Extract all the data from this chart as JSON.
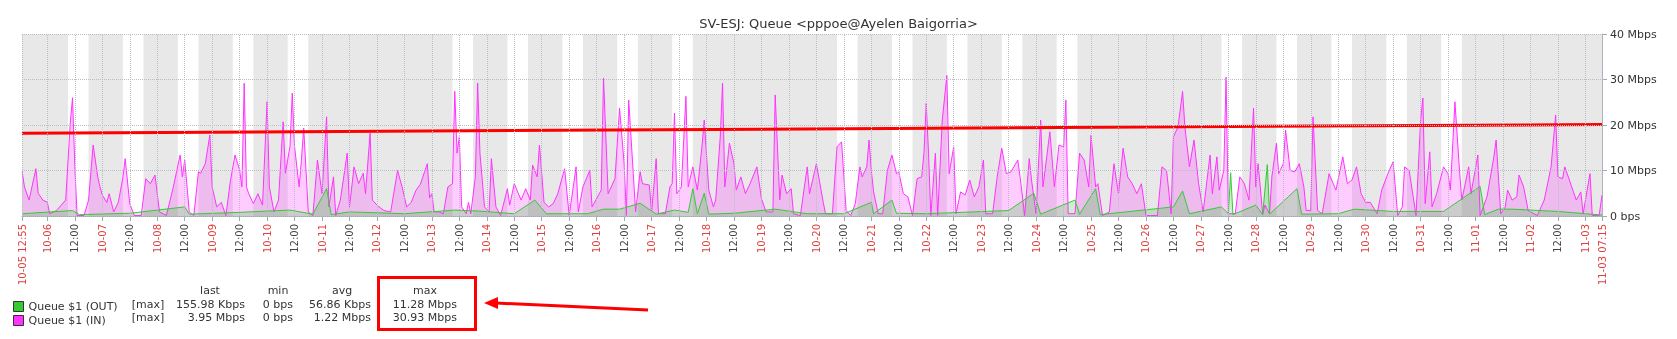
{
  "chart_data": {
    "type": "area",
    "title": "SV-ESJ: Queue <pppoe@Ayelen Baigorria>",
    "xlim": [
      "--10-05T12:55",
      "--11-03T07:15"
    ],
    "xticks": [
      {
        "value": "--10-05T12:55",
        "label": "10-05 12:55"
      },
      {
        "value": "--10-06T00:00",
        "label": "10-06"
      },
      {
        "value": "--10-06T12:00",
        "label": "12:00"
      },
      {
        "value": "--10-07T00:00",
        "label": "10-07"
      },
      {
        "value": "--10-07T12:00",
        "label": "12:00"
      },
      {
        "value": "--10-08T00:00",
        "label": "10-08"
      },
      {
        "value": "--10-08T12:00",
        "label": "12:00"
      },
      {
        "value": "--10-09T00:00",
        "label": "10-09"
      },
      {
        "value": "--10-09T12:00",
        "label": "12:00"
      },
      {
        "value": "--10-10T00:00",
        "label": "10-10"
      },
      {
        "value": "--10-10T12:00",
        "label": "12:00"
      },
      {
        "value": "--10-11T00:00",
        "label": "10-11"
      },
      {
        "value": "--10-11T12:00",
        "label": "12:00"
      },
      {
        "value": "--10-12T00:00",
        "label": "10-12"
      },
      {
        "value": "--10-12T12:00",
        "label": "12:00"
      },
      {
        "value": "--10-13T00:00",
        "label": "10-13"
      },
      {
        "value": "--10-13T12:00",
        "label": "12:00"
      },
      {
        "value": "--10-14T00:00",
        "label": "10-14"
      },
      {
        "value": "--10-14T12:00",
        "label": "12:00"
      },
      {
        "value": "--10-15T00:00",
        "label": "10-15"
      },
      {
        "value": "--10-15T12:00",
        "label": "12:00"
      },
      {
        "value": "--10-16T00:00",
        "label": "10-16"
      },
      {
        "value": "--10-16T12:00",
        "label": "12:00"
      },
      {
        "value": "--10-17T00:00",
        "label": "10-17"
      },
      {
        "value": "--10-17T12:00",
        "label": "12:00"
      },
      {
        "value": "--10-18T00:00",
        "label": "10-18"
      },
      {
        "value": "--10-18T12:00",
        "label": "12:00"
      },
      {
        "value": "--10-19T00:00",
        "label": "10-19"
      },
      {
        "value": "--10-19T12:00",
        "label": "12:00"
      },
      {
        "value": "--10-20T00:00",
        "label": "10-20"
      },
      {
        "value": "--10-20T12:00",
        "label": "12:00"
      },
      {
        "value": "--10-21T00:00",
        "label": "10-21"
      },
      {
        "value": "--10-21T12:00",
        "label": "12:00"
      },
      {
        "value": "--10-22T00:00",
        "label": "10-22"
      },
      {
        "value": "--10-22T12:00",
        "label": "12:00"
      },
      {
        "value": "--10-23T00:00",
        "label": "10-23"
      },
      {
        "value": "--10-23T12:00",
        "label": "12:00"
      },
      {
        "value": "--10-24T00:00",
        "label": "10-24"
      },
      {
        "value": "--10-24T12:00",
        "label": "12:00"
      },
      {
        "value": "--10-25T00:00",
        "label": "10-25"
      },
      {
        "value": "--10-25T12:00",
        "label": "12:00"
      },
      {
        "value": "--10-26T00:00",
        "label": "10-26"
      },
      {
        "value": "--10-26T12:00",
        "label": "12:00"
      },
      {
        "value": "--10-27T00:00",
        "label": "10-27"
      },
      {
        "value": "--10-27T12:00",
        "label": "12:00"
      },
      {
        "value": "--10-28T00:00",
        "label": "10-28"
      },
      {
        "value": "--10-28T12:00",
        "label": "12:00"
      },
      {
        "value": "--10-29T00:00",
        "label": "10-29"
      },
      {
        "value": "--10-29T12:00",
        "label": "12:00"
      },
      {
        "value": "--10-30T00:00",
        "label": "10-30"
      },
      {
        "value": "--10-30T12:00",
        "label": "12:00"
      },
      {
        "value": "--10-31T00:00",
        "label": "10-31"
      },
      {
        "value": "--10-31T12:00",
        "label": "12:00"
      },
      {
        "value": "--11-01T00:00",
        "label": "11-01"
      },
      {
        "value": "--11-01T12:00",
        "label": "12:00"
      },
      {
        "value": "--11-02T00:00",
        "label": "11-02"
      },
      {
        "value": "--11-02T12:00",
        "label": "12:00"
      },
      {
        "value": "--11-03T00:00",
        "label": "11-03"
      },
      {
        "value": "--11-03T07:15",
        "label": "11-03 07:15"
      }
    ],
    "ylim": [
      0,
      40
    ],
    "yticks": [
      {
        "value": 0,
        "label": "0 bps"
      },
      {
        "value": 10,
        "label": "10 Mbps"
      },
      {
        "value": 20,
        "label": "20 Mbps"
      },
      {
        "value": 30,
        "label": "30 Mbps"
      },
      {
        "value": 40,
        "label": "40 Mbps"
      }
    ],
    "grid": true,
    "legend": "bottom left",
    "bands": [
      {
        "axis": "x",
        "from": "--10-05T12:55",
        "to": "--10-06T09:00",
        "color": "#e8e8e8"
      },
      {
        "axis": "x",
        "from": "--10-06T18:00",
        "to": "--10-07T09:00",
        "color": "#e8e8e8"
      },
      {
        "axis": "x",
        "from": "--10-07T18:00",
        "to": "--10-08T09:00",
        "color": "#e8e8e8"
      },
      {
        "axis": "x",
        "from": "--10-08T18:00",
        "to": "--10-09T09:00",
        "color": "#e8e8e8"
      },
      {
        "axis": "x",
        "from": "--10-09T18:00",
        "to": "--10-10T09:00",
        "color": "#e8e8e8"
      },
      {
        "axis": "x",
        "from": "--10-10T18:00",
        "to": "--10-13T09:00",
        "color": "#e8e8e8"
      },
      {
        "axis": "x",
        "from": "--10-13T18:00",
        "to": "--10-14T09:00",
        "color": "#e8e8e8"
      },
      {
        "axis": "x",
        "from": "--10-14T18:00",
        "to": "--10-15T09:00",
        "color": "#e8e8e8"
      },
      {
        "axis": "x",
        "from": "--10-15T18:00",
        "to": "--10-16T09:00",
        "color": "#e8e8e8"
      },
      {
        "axis": "x",
        "from": "--10-16T18:00",
        "to": "--10-17T09:00",
        "color": "#e8e8e8"
      },
      {
        "axis": "x",
        "from": "--10-17T18:00",
        "to": "--10-20T09:00",
        "color": "#e8e8e8"
      },
      {
        "axis": "x",
        "from": "--10-20T18:00",
        "to": "--10-21T09:00",
        "color": "#e8e8e8"
      },
      {
        "axis": "x",
        "from": "--10-21T18:00",
        "to": "--10-22T09:00",
        "color": "#e8e8e8"
      },
      {
        "axis": "x",
        "from": "--10-22T18:00",
        "to": "--10-23T09:00",
        "color": "#e8e8e8"
      },
      {
        "axis": "x",
        "from": "--10-23T18:00",
        "to": "--10-24T09:00",
        "color": "#e8e8e8"
      },
      {
        "axis": "x",
        "from": "--10-24T18:00",
        "to": "--10-27T09:00",
        "color": "#e8e8e8"
      },
      {
        "axis": "x",
        "from": "--10-27T18:00",
        "to": "--10-28T09:00",
        "color": "#e8e8e8"
      },
      {
        "axis": "x",
        "from": "--10-28T18:00",
        "to": "--10-29T09:00",
        "color": "#e8e8e8"
      },
      {
        "axis": "x",
        "from": "--10-29T18:00",
        "to": "--10-30T09:00",
        "color": "#e8e8e8"
      },
      {
        "axis": "x",
        "from": "--10-30T18:00",
        "to": "--10-31T09:00",
        "color": "#e8e8e8"
      },
      {
        "axis": "x",
        "from": "--10-31T18:00",
        "to": "--11-03T07:15",
        "color": "#e8e8e8"
      }
    ],
    "annotations": [
      "last",
      "min",
      "avg",
      "max",
      "[max]",
      "155.98 Kbps",
      "0 bps",
      "56.86 Kbps",
      "11.28 Mbps",
      "[max]",
      "3.95 Mbps",
      "0 bps",
      "1.22 Mbps",
      "30.93 Mbps"
    ],
    "series": [
      {
        "name": "Queue $1 (IN)",
        "color": "#ff33ff",
        "x": [
          "--10-05T13:00",
          "--10-05T14:00",
          "--10-05T16:00",
          "--10-05T19:00",
          "--10-05T20:00",
          "--10-05T22:00",
          "--10-06T00:00",
          "--10-06T01:00",
          "--10-06T04:00",
          "--10-06T08:00",
          "--10-06T10:00",
          "--10-06T11:00",
          "--10-06T12:00",
          "--10-06T13:00",
          "--10-06T16:00",
          "--10-06T18:00",
          "--10-06T20:00",
          "--10-06T22:00",
          "--10-06T23:00",
          "--10-07T00:00",
          "--10-07T02:00",
          "--10-07T03:00",
          "--10-07T05:00",
          "--10-07T07:00",
          "--10-07T09:00",
          "--10-07T10:00",
          "--10-07T12:00",
          "--10-07T14:00",
          "--10-07T17:00",
          "--10-07T19:00",
          "--10-07T21:00",
          "--10-07T23:00",
          "--10-08T01:00",
          "--10-08T04:00",
          "--10-08T07:00",
          "--10-08T10:00",
          "--10-08T11:00",
          "--10-08T12:00",
          "--10-08T14:00",
          "--10-08T16:00",
          "--10-08T18:00",
          "--10-08T19:00",
          "--10-08T21:00",
          "--10-08T23:00",
          "--10-09T00:00",
          "--10-09T02:00",
          "--10-09T04:00",
          "--10-09T06:00",
          "--10-09T08:00",
          "--10-09T10:00",
          "--10-09T12:00",
          "--10-09T13:00",
          "--10-09T14:00",
          "--10-09T15:00",
          "--10-09T16:00",
          "--10-09T18:00",
          "--10-09T20:00",
          "--10-09T22:00",
          "--10-10T00:00",
          "--10-10T01:00",
          "--10-10T03:00",
          "--10-10T05:00",
          "--10-10T07:00",
          "--10-10T08:00",
          "--10-10T10:00",
          "--10-10T11:00",
          "--10-10T12:00",
          "--10-10T14:00",
          "--10-10T15:00",
          "--10-10T16:00",
          "--10-10T18:00",
          "--10-10T20:00",
          "--10-10T22:00",
          "--10-11T00:00",
          "--10-11T02:00",
          "--10-11T03:00",
          "--10-11T05:00",
          "--10-11T06:00",
          "--10-11T08:00",
          "--10-11T11:00",
          "--10-11T12:00",
          "--10-11T14:00",
          "--10-11T16:00",
          "--10-11T18:00",
          "--10-11T19:00",
          "--10-11T21:00",
          "--10-11T22:00",
          "--10-12T00:00",
          "--10-12T03:00",
          "--10-12T06:00",
          "--10-12T09:00",
          "--10-12T11:00",
          "--10-12T13:00",
          "--10-12T15:00",
          "--10-12T17:00",
          "--10-12T19:00",
          "--10-12T22:00",
          "--10-12T23:00",
          "--10-13T00:00",
          "--10-13T01:00",
          "--10-13T03:00",
          "--10-13T05:00",
          "--10-13T07:00",
          "--10-13T09:00",
          "--10-13T10:00",
          "--10-13T11:00",
          "--10-13T12:00",
          "--10-13T13:00",
          "--10-13T15:00",
          "--10-13T16:00",
          "--10-13T17:00",
          "--10-13T19:00",
          "--10-13T20:00",
          "--10-13T21:00",
          "--10-13T23:00",
          "--10-14T01:00",
          "--10-14T02:00",
          "--10-14T04:00",
          "--10-14T06:00",
          "--10-14T07:00",
          "--10-14T09:00",
          "--10-14T10:00",
          "--10-14T12:00",
          "--10-14T15:00",
          "--10-14T17:00",
          "--10-14T19:00",
          "--10-14T20:00",
          "--10-14T22:00",
          "--10-14T23:00",
          "--10-15T01:00",
          "--10-15T03:00",
          "--10-15T05:00",
          "--10-15T07:00",
          "--10-15T10:00",
          "--10-15T12:00",
          "--10-15T15:00",
          "--10-15T16:00",
          "--10-15T18:00",
          "--10-15T21:00",
          "--10-15T22:00",
          "--10-16T02:00",
          "--10-16T03:00",
          "--10-16T05:00",
          "--10-16T08:00",
          "--10-16T10:00",
          "--10-16T12:00",
          "--10-16T13:00",
          "--10-16T14:00",
          "--10-16T16:00",
          "--10-16T17:00",
          "--10-16T19:00",
          "--10-16T20:00",
          "--10-16T23:00",
          "--10-17T00:00",
          "--10-17T02:00",
          "--10-17T03:00",
          "--10-17T06:00",
          "--10-17T08:00",
          "--10-17T09:00",
          "--10-17T10:00",
          "--10-17T11:00",
          "--10-17T13:00",
          "--10-17T15:00",
          "--10-17T16:00",
          "--10-17T18:00",
          "--10-17T20:00",
          "--10-17T22:00",
          "--10-17T23:00",
          "--10-18T01:00",
          "--10-18T03:00",
          "--10-18T04:00",
          "--10-18T06:00",
          "--10-18T07:00",
          "--10-18T08:00",
          "--10-18T10:00",
          "--10-18T12:00",
          "--10-18T13:00",
          "--10-18T15:00",
          "--10-18T17:00",
          "--10-18T19:00",
          "--10-18T22:00",
          "--10-19T00:00",
          "--10-19T02:00",
          "--10-19T05:00",
          "--10-19T06:00",
          "--10-19T08:00",
          "--10-19T09:00",
          "--10-19T11:00",
          "--10-19T13:00",
          "--10-19T14:00",
          "--10-19T17:00",
          "--10-19T20:00",
          "--10-19T21:00",
          "--10-19T23:00",
          "--10-20T00:00",
          "--10-20T03:00",
          "--10-20T04:00",
          "--10-20T07:00",
          "--10-20T09:00",
          "--10-20T11:00",
          "--10-20T13:00",
          "--10-20T15:00",
          "--10-20T17:00",
          "--10-20T19:00",
          "--10-20T20:00",
          "--10-20T22:00",
          "--10-20T23:00",
          "--10-21T00:00",
          "--10-21T01:00",
          "--10-21T03:00",
          "--10-21T05:00",
          "--10-21T07:00",
          "--10-21T09:00",
          "--10-21T11:00",
          "--10-21T12:00",
          "--10-21T14:00",
          "--10-21T16:00",
          "--10-21T18:00",
          "--10-21T20:00",
          "--10-21T22:00",
          "--10-21T23:00",
          "--10-22T00:00",
          "--10-22T01:00",
          "--10-22T02:00",
          "--10-22T04:00",
          "--10-22T05:00",
          "--10-22T07:00",
          "--10-22T09:00",
          "--10-22T10:00",
          "--10-22T12:00",
          "--10-22T13:00",
          "--10-22T15:00",
          "--10-22T17:00",
          "--10-22T19:00",
          "--10-22T21:00",
          "--10-22T23:00",
          "--10-23T01:00",
          "--10-23T02:00",
          "--10-23T05:00",
          "--10-23T07:00",
          "--10-23T09:00",
          "--10-23T11:00",
          "--10-23T13:00",
          "--10-23T16:00",
          "--10-23T17:00",
          "--10-23T19:00",
          "--10-23T21:00",
          "--10-23T22:00",
          "--10-24T00:00",
          "--10-24T02:00",
          "--10-24T03:00",
          "--10-24T06:00",
          "--10-24T08:00",
          "--10-24T10:00",
          "--10-24T12:00",
          "--10-24T13:00",
          "--10-24T14:00",
          "--10-24T17:00",
          "--10-24T19:00",
          "--10-24T21:00",
          "--10-24T23:00",
          "--10-25T00:00",
          "--10-25T02:00",
          "--10-25T03:00",
          "--10-25T05:00",
          "--10-25T08:00",
          "--10-25T10:00",
          "--10-25T12:00",
          "--10-25T14:00",
          "--10-25T16:00",
          "--10-25T18:00",
          "--10-25T20:00",
          "--10-25T22:00",
          "--10-26T00:00",
          "--10-26T02:00",
          "--10-26T05:00",
          "--10-26T07:00",
          "--10-26T09:00",
          "--10-26T11:00",
          "--10-26T12:00",
          "--10-26T14:00",
          "--10-26T16:00",
          "--10-26T17:00",
          "--10-26T19:00",
          "--10-26T21:00",
          "--10-26T23:00",
          "--10-27T01:00",
          "--10-27T04:00",
          "--10-27T05:00",
          "--10-27T07:00",
          "--10-27T08:00",
          "--10-27T10:00",
          "--10-27T11:00",
          "--10-27T12:00",
          "--10-27T15:00",
          "--10-27T17:00",
          "--10-27T19:00",
          "--10-27T21:00",
          "--10-27T22:00",
          "--10-27T23:00",
          "--10-28T00:00",
          "--10-28T01:00",
          "--10-28T03:00",
          "--10-28T04:00",
          "--10-28T06:00",
          "--10-28T07:00",
          "--10-28T09:00",
          "--10-28T10:00",
          "--10-28T12:00",
          "--10-28T13:00",
          "--10-28T15:00",
          "--10-28T17:00",
          "--10-28T19:00",
          "--10-28T21:00",
          "--10-28T22:00",
          "--10-29T00:00",
          "--10-29T01:00",
          "--10-29T03:00",
          "--10-29T05:00",
          "--10-29T08:00",
          "--10-29T11:00",
          "--10-29T14:00",
          "--10-29T16:00",
          "--10-29T18:00",
          "--10-29T20:00",
          "--10-29T22:00",
          "--10-30T00:00",
          "--10-30T02:00",
          "--10-30T05:00",
          "--10-30T07:00",
          "--10-30T10:00",
          "--10-30T12:00",
          "--10-30T14:00",
          "--10-30T16:00",
          "--10-30T17:00",
          "--10-30T19:00",
          "--10-30T22:00",
          "--10-31T00:00",
          "--10-31T01:00",
          "--10-31T02:00",
          "--10-31T04:00",
          "--10-31T05:00",
          "--10-31T07:00",
          "--10-31T10:00",
          "--10-31T12:00",
          "--10-31T13:00",
          "--10-31T15:00",
          "--10-31T17:00",
          "--10-31T18:00",
          "--10-31T21:00",
          "--10-31T22:00",
          "--11-01T01:00",
          "--11-01T02:00",
          "--11-01T05:00",
          "--11-01T08:00",
          "--11-01T09:00",
          "--11-01T11:00",
          "--11-01T13:00",
          "--11-01T14:00",
          "--11-01T16:00",
          "--11-01T18:00",
          "--11-01T19:00",
          "--11-01T21:00",
          "--11-01T23:00",
          "--11-02T03:00",
          "--11-02T06:00",
          "--11-02T09:00",
          "--11-02T11:00",
          "--11-02T12:00",
          "--11-02T14:00",
          "--11-02T15:00",
          "--11-02T17:00",
          "--11-02T20:00",
          "--11-02T22:00",
          "--11-02T23:00",
          "--11-03T02:00",
          "--11-03T03:00",
          "--11-03T06:00",
          "--11-03T07:15"
        ],
        "values": [
          9.7,
          6.4,
          3.5,
          10.4,
          5,
          3.5,
          3,
          0.5,
          1.2,
          3.5,
          20.4,
          26,
          10.8,
          0.1,
          0.1,
          3.5,
          15.6,
          8.6,
          6.4,
          4.6,
          3,
          4.9,
          0.9,
          3,
          8.5,
          12.6,
          2.7,
          0.1,
          0.1,
          8.2,
          7.1,
          9,
          0.9,
          0.1,
          6.3,
          13.4,
          8.6,
          12.3,
          0.9,
          0.1,
          9.7,
          9.4,
          11.5,
          17.8,
          6.4,
          2,
          3,
          0.1,
          7.8,
          13.4,
          10.1,
          6.4,
          29.2,
          6.4,
          4.9,
          2.7,
          4.9,
          2.4,
          25.1,
          6.4,
          0.9,
          3.5,
          20.7,
          9.4,
          15.3,
          27,
          15.3,
          6.4,
          12.3,
          19.3,
          0.9,
          0.1,
          12.3,
          4.9,
          21.8,
          2,
          8.6,
          0.1,
          3.5,
          13.8,
          2,
          10.8,
          7.1,
          9.4,
          4.9,
          18.2,
          3.5,
          2.4,
          1.2,
          0.9,
          10,
          6.4,
          2,
          3,
          5.6,
          7,
          11.5,
          4,
          4.9,
          0.9,
          0.9,
          0.5,
          6.4,
          7.1,
          27.4,
          13.8,
          17.4,
          2,
          0.5,
          3,
          0.5,
          8.6,
          29.2,
          13.8,
          2,
          0.9,
          12.6,
          2,
          0.1,
          2,
          6,
          2.4,
          7.1,
          3.5,
          6,
          3.5,
          11.2,
          8.6,
          15.6,
          3,
          2,
          2.7,
          4.9,
          10.4,
          0.1,
          10.8,
          0.9,
          6.4,
          10,
          2,
          5.7,
          30.3,
          4.9,
          8.2,
          23.7,
          11.5,
          0.1,
          25.5,
          9.3,
          0.9,
          9.7,
          7.1,
          6.8,
          0.9,
          12.6,
          0.5,
          0.5,
          6.4,
          7.1,
          22.6,
          4.9,
          6.4,
          26.3,
          6.4,
          10.8,
          5.7,
          15.2,
          21.1,
          5.7,
          2,
          3.5,
          17.4,
          29.2,
          6.4,
          16,
          11.5,
          5.7,
          8.6,
          4.9,
          7.1,
          10.8,
          3.8,
          0.9,
          0.9,
          26.6,
          3.5,
          9,
          4.9,
          6,
          0.5,
          0.1,
          10.8,
          4.9,
          9.3,
          11.5,
          3,
          0.5,
          0.5,
          15.2,
          16.3,
          1.2,
          0.1,
          2.7,
          10.8,
          8.6,
          10.8,
          16.7,
          10,
          5.3,
          0.5,
          0.5,
          10,
          13.4,
          9.3,
          9.7,
          4.9,
          4.2,
          0.1,
          8.2,
          8.6,
          13.8,
          24.8,
          13.8,
          0.1,
          13.8,
          0.1,
          21.1,
          30.9,
          9.3,
          15.2,
          0.5,
          5.3,
          4.6,
          7.9,
          4.2,
          6.4,
          12.3,
          0.5,
          0.5,
          8.6,
          14.9,
          9.3,
          9.7,
          12.3,
          8.6,
          0.1,
          12.6,
          7.9,
          0.5,
          21.1,
          6.4,
          18.5,
          6.4,
          15.6,
          15.2,
          25.5,
          0.5,
          0.5,
          13.8,
          12.3,
          6.4,
          17.8,
          6.4,
          7.1,
          0.1,
          0.9,
          11.5,
          4.9,
          14.9,
          8.6,
          7.1,
          4.9,
          7.1,
          0.1,
          0.1,
          0.1,
          10.8,
          10,
          0.5,
          17.4,
          19.6,
          27.4,
          19.6,
          10.8,
          16.7,
          7.1,
          0.9,
          13.4,
          4.9,
          13,
          5.7,
          10,
          30.5,
          0.5,
          0.5,
          8.6,
          7.1,
          3.5,
          13.8,
          23.7,
          6.4,
          11.5,
          0.5,
          2.4,
          0.5,
          8.6,
          16,
          9.3,
          11.5,
          18.9,
          10,
          9.7,
          11.5,
          6.4,
          1.2,
          1.2,
          21.8,
          1.2,
          0.5,
          9.3,
          5.7,
          13,
          7.1,
          7.9,
          10.8,
          4.9,
          3,
          3,
          0.5,
          5.7,
          9.7,
          11.9,
          0.1,
          2,
          10.8,
          10,
          0.1,
          21.1,
          25.9,
          2.7,
          14.1,
          2,
          4.9,
          10.8,
          9.3,
          5.7,
          25.1,
          10,
          3.5,
          10.8,
          4.9,
          13.4,
          0.1,
          4.2,
          13,
          16.7,
          0.5,
          2,
          5.7,
          3.5,
          4.2,
          9,
          6.4,
          1.2,
          0.1,
          3.5,
          10.8,
          22.2,
          8.6,
          8.2,
          10.8,
          7.9,
          3.5,
          5.3,
          0.5,
          9.3,
          0.1,
          0.1,
          4.6
        ]
      },
      {
        "name": "Queue $1 (OUT)",
        "color": "#33cc33",
        "x": [
          "--10-05T13:00",
          "--10-06T11:00",
          "--10-06T14:00",
          "--10-07T12:00",
          "--10-08T12:00",
          "--10-08T14:00",
          "--10-09T12:00",
          "--10-10T10:00",
          "--10-10T20:00",
          "--10-11T02:00",
          "--10-11T04:00",
          "--10-11T12:00",
          "--10-12T12:00",
          "--10-13T10:00",
          "--10-13T20:00",
          "--10-14T12:00",
          "--10-14T21:00",
          "--10-15T02:00",
          "--10-15T20:00",
          "--10-16T03:00",
          "--10-16T10:00",
          "--10-16T19:00",
          "--10-17T02:00",
          "--10-17T10:00",
          "--10-17T16:00",
          "--10-17T18:00",
          "--10-17T20:00",
          "--10-17T23:00",
          "--10-18T01:00",
          "--10-18T12:00",
          "--10-19T06:00",
          "--10-19T20:00",
          "--10-20T12:00",
          "--10-21T00:00",
          "--10-21T01:00",
          "--10-21T09:00",
          "--10-21T11:00",
          "--10-22T00:00",
          "--10-23T12:00",
          "--10-23T23:00",
          "--10-24T02:00",
          "--10-24T17:00",
          "--10-24T19:00",
          "--10-25T02:00",
          "--10-25T04:00",
          "--10-26T12:00",
          "--10-26T16:00",
          "--10-26T19:00",
          "--10-27T09:00",
          "--10-27T12:00",
          "--10-27T13:00",
          "--10-27T14:00",
          "--10-28T00:00",
          "--10-28T03:00",
          "--10-28T05:00",
          "--10-28T06:00",
          "--10-28T18:00",
          "--10-28T20:00",
          "--10-29T12:00",
          "--10-29T19:00",
          "--10-30T12:00",
          "--10-31T10:00",
          "--11-01T02:00",
          "--11-01T04:00",
          "--11-01T10:00",
          "--11-01T16:00",
          "--11-02T12:00",
          "--11-03T07:15"
        ],
        "values": [
          0.5,
          1.2,
          0.3,
          0.6,
          2,
          0.4,
          0.8,
          1.3,
          0.4,
          6,
          0.3,
          0.9,
          0.5,
          1.3,
          1.1,
          0.5,
          3.5,
          0.5,
          0.5,
          1.5,
          1.5,
          2.8,
          0.4,
          1.3,
          0.8,
          6,
          0.5,
          5,
          0.4,
          0.6,
          1.5,
          0.5,
          0.5,
          3,
          0.5,
          3.5,
          0.6,
          0.5,
          1.2,
          5,
          0.4,
          3.5,
          0.4,
          6,
          0.3,
          2,
          5.5,
          0.5,
          2,
          0.5,
          9.5,
          0.3,
          2.4,
          0.3,
          11.3,
          0.4,
          6,
          0.4,
          0.5,
          1.5,
          1,
          1,
          6.5,
          0.3,
          1.5,
          1.5,
          1,
          0.2
        ]
      },
      {
        "type": "line",
        "color": "#ff0000",
        "x": [
          "--10-05T12:55",
          "--11-03T07:15"
        ],
        "values": [
          18.2,
          20.1
        ]
      }
    ]
  }
}
